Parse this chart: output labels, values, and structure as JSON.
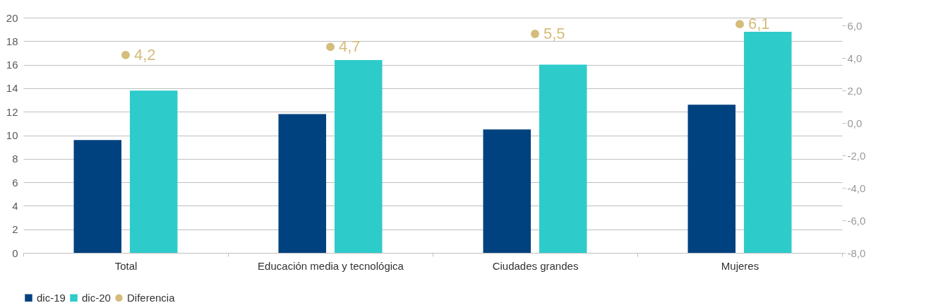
{
  "chart_data": {
    "type": "bar",
    "categories": [
      "Total",
      "Educación media y tecnológica",
      "Ciudades grandes",
      "Mujeres"
    ],
    "series": [
      {
        "name": "dic-19",
        "color": "#00427f",
        "values": [
          9.6,
          11.8,
          10.5,
          12.6
        ]
      },
      {
        "name": "dic-20",
        "color": "#2ecbcb",
        "values": [
          13.8,
          16.4,
          16.0,
          18.8
        ]
      },
      {
        "name": "Diferencia",
        "type": "scatter",
        "axis": "y2",
        "color": "#d4bc7a",
        "values": [
          4.2,
          4.7,
          5.5,
          6.1
        ],
        "value_labels": [
          "4,2",
          "4,7",
          "5,5",
          "6,1"
        ]
      }
    ],
    "ylim": [
      0,
      20
    ],
    "yticks": [
      0,
      2,
      4,
      6,
      8,
      10,
      12,
      14,
      16,
      18,
      20
    ],
    "y2lim": [
      -8,
      6.5
    ],
    "y2ticks": [
      {
        "value": -8,
        "label": "-8,0"
      },
      {
        "value": -6,
        "label": "-6,0"
      },
      {
        "value": -4,
        "label": "-4,0"
      },
      {
        "value": -2,
        "label": "-2,0"
      },
      {
        "value": 0,
        "label": "0,0"
      },
      {
        "value": 2,
        "label": "2,0"
      },
      {
        "value": 4,
        "label": "4,0"
      },
      {
        "value": 6,
        "label": "6,0"
      }
    ],
    "grid": "y",
    "legend": "bottom left",
    "marker": "circle"
  }
}
